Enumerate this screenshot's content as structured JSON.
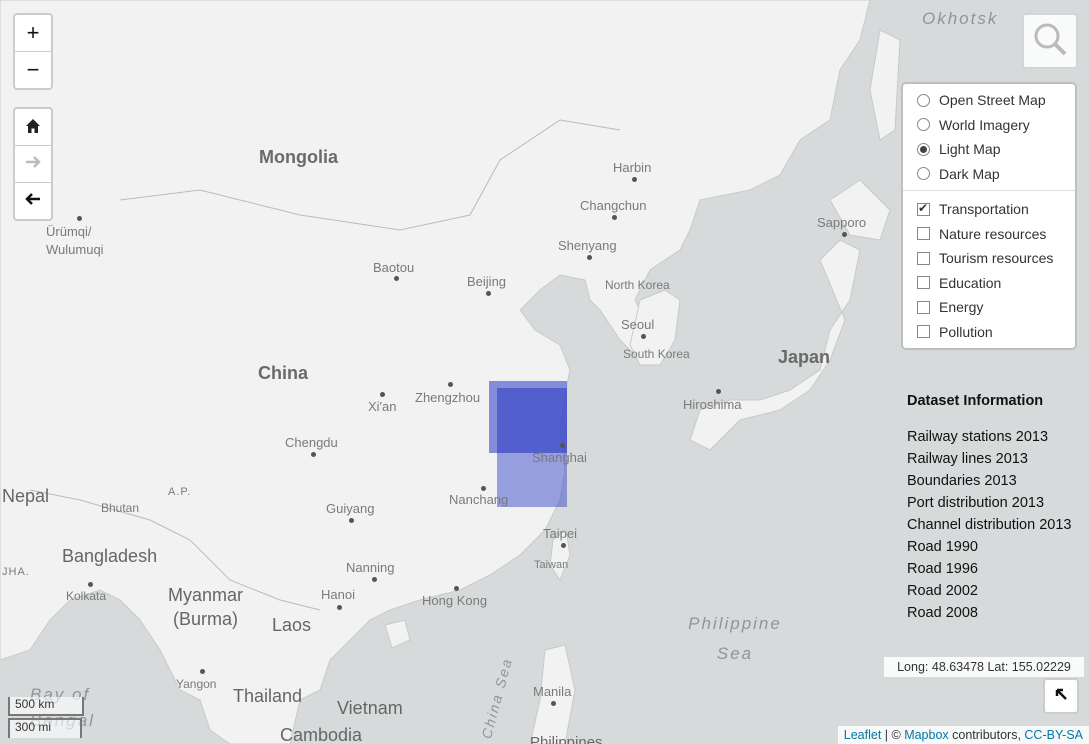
{
  "zoom": {
    "in_label": "+",
    "out_label": "−"
  },
  "nav": {
    "home_label": "🏠",
    "forward_label": "➔",
    "back_label": "🡐"
  },
  "layers": {
    "base": [
      {
        "label": "Open Street Map",
        "selected": false
      },
      {
        "label": "World Imagery",
        "selected": false
      },
      {
        "label": "Light Map",
        "selected": true
      },
      {
        "label": "Dark Map",
        "selected": false
      }
    ],
    "overlays": [
      {
        "label": "Transportation",
        "checked": true
      },
      {
        "label": "Nature resources",
        "checked": false
      },
      {
        "label": "Tourism resources",
        "checked": false
      },
      {
        "label": "Education",
        "checked": false
      },
      {
        "label": "Energy",
        "checked": false
      },
      {
        "label": "Pollution",
        "checked": false
      }
    ]
  },
  "info": {
    "title": "Dataset Information",
    "items": [
      "Railway stations 2013",
      "Railway lines 2013",
      "Boundaries 2013",
      "Port distribution 2013",
      "Channel distribution 2013",
      "Road 1990",
      "Road 1996",
      "Road 2002",
      "Road 2008"
    ]
  },
  "coords_text": "Long: 48.63478 Lat: 155.02229",
  "attribution": {
    "leaflet": "Leaflet",
    "mid": " | © ",
    "mapbox": "Mapbox",
    "contrib": " contributors, ",
    "license": "CC-BY-SA"
  },
  "scale": {
    "km": "500 km",
    "mi": "300 mi"
  },
  "labels": {
    "countries": [
      "Mongolia",
      "China",
      "Japan",
      "Nepal",
      "Bhutan",
      "Bangladesh",
      "Myanmar (Burma)",
      "Laos",
      "Thailand",
      "Vietnam",
      "Cambodia",
      "North Korea",
      "South Korea",
      "Taiwan"
    ],
    "cities": [
      "Harbin",
      "Changchun",
      "Shenyang",
      "Beijing",
      "Baotou",
      "Ürümqi/ Wulumuqi",
      "Zhengzhou",
      "Xi'an",
      "Chengdu",
      "Shanghai",
      "Nanchang",
      "Guiyang",
      "Nanning",
      "Hanoi",
      "Hong Kong",
      "Taipei",
      "Seoul",
      "Hiroshima",
      "Sapporo",
      "Kolkata",
      "Yangon",
      "Manila",
      "Philippines",
      "A.P.",
      "JHA."
    ],
    "seas": [
      "Okhotsk",
      "Philippine Sea",
      "Bay of Bengal",
      "China Sea"
    ]
  },
  "colors": {
    "water": "#d7dadb",
    "land": "#f2f2f2",
    "overlay": "#3b4ac8"
  }
}
